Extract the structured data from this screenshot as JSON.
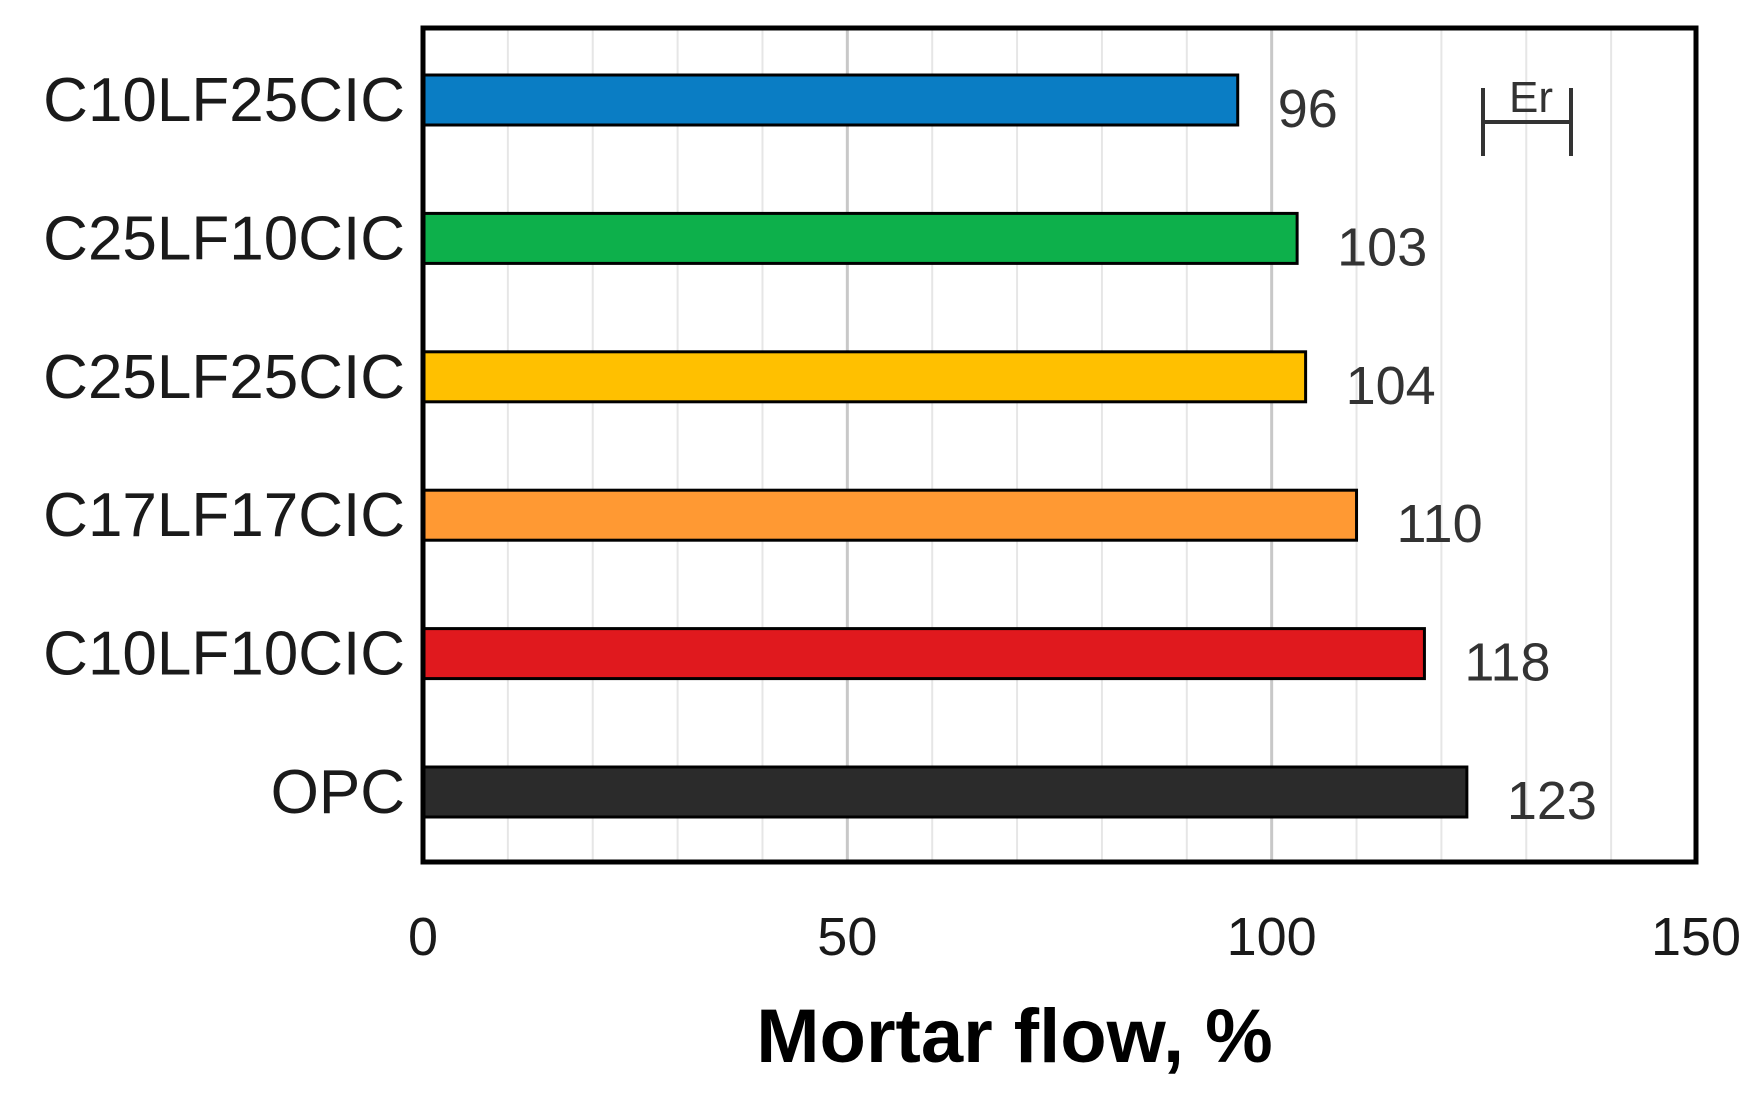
{
  "chart_data": {
    "type": "bar",
    "orientation": "horizontal",
    "categories": [
      "C10LF25CIC",
      "C25LF10CIC",
      "C25LF25CIC",
      "C17LF17CIC",
      "C10LF10CIC",
      "OPC"
    ],
    "values": [
      96,
      103,
      104,
      110,
      118,
      123
    ],
    "value_labels": [
      "96",
      "103",
      "104",
      "110",
      "118",
      "123"
    ],
    "colors": [
      "#0a7dc4",
      "#0db04b",
      "#ffc000",
      "#ff9933",
      "#e0191e",
      "#2b2b2b"
    ],
    "xlabel": "Mortar flow, %",
    "ylabel": "",
    "xlim": [
      0,
      150
    ],
    "xticks": [
      "0",
      "50",
      "100",
      "150"
    ],
    "grid": "vertical minor lines",
    "error_legend": {
      "label": "Er",
      "placement": "top-right",
      "span": 10
    }
  }
}
